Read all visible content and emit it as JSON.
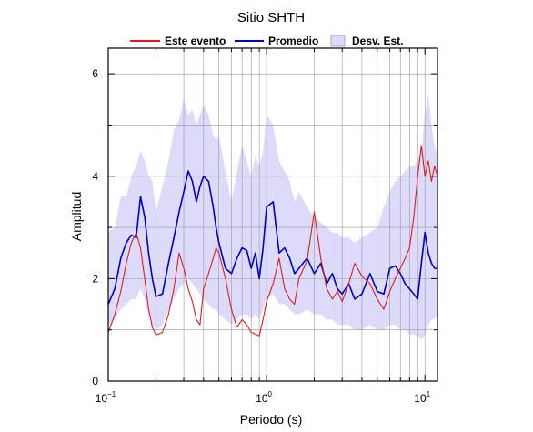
{
  "chart_data": {
    "type": "line",
    "title": "Sitio SHTH",
    "xlabel": "Periodo (s)",
    "ylabel": "Amplitud",
    "x_scale": "log",
    "xlim": [
      0.1,
      12
    ],
    "ylim": [
      0,
      6.5
    ],
    "x_ticks": [
      {
        "base": "10",
        "exp": "−1",
        "value": 0.1
      },
      {
        "base": "10",
        "exp": "0",
        "value": 1
      },
      {
        "base": "10",
        "exp": "1",
        "value": 10
      }
    ],
    "y_ticks": [
      0,
      2,
      4,
      6
    ],
    "grid": true,
    "legend_position": "top-center",
    "legend": [
      {
        "label": "Este evento",
        "color": "#e41a1c",
        "kind": "line"
      },
      {
        "label": "Promedio",
        "color": "#0000cc",
        "kind": "line"
      },
      {
        "label": "Desv. Est.",
        "color": "#dcdcfa",
        "kind": "band"
      }
    ],
    "x": [
      0.1,
      0.11,
      0.12,
      0.13,
      0.14,
      0.15,
      0.16,
      0.17,
      0.18,
      0.19,
      0.2,
      0.22,
      0.24,
      0.26,
      0.28,
      0.3,
      0.32,
      0.34,
      0.36,
      0.38,
      0.4,
      0.43,
      0.46,
      0.48,
      0.5,
      0.55,
      0.6,
      0.65,
      0.7,
      0.75,
      0.8,
      0.85,
      0.9,
      0.95,
      1.0,
      1.1,
      1.2,
      1.3,
      1.4,
      1.5,
      1.6,
      1.8,
      2.0,
      2.2,
      2.4,
      2.6,
      2.8,
      3.0,
      3.3,
      3.6,
      4.0,
      4.5,
      5.0,
      5.5,
      6.0,
      6.5,
      7.0,
      7.5,
      8.0,
      8.5,
      9.0,
      9.5,
      10.0,
      10.5,
      11.0,
      11.5,
      12.0
    ],
    "series": [
      {
        "name": "Promedio",
        "color": "#0000cc",
        "values": [
          1.5,
          1.8,
          2.4,
          2.7,
          2.85,
          2.8,
          3.6,
          3.2,
          2.5,
          2.0,
          1.65,
          1.7,
          2.3,
          2.8,
          3.3,
          3.7,
          4.1,
          3.9,
          3.5,
          3.8,
          4.0,
          3.9,
          3.4,
          3.0,
          2.7,
          2.2,
          2.1,
          2.4,
          2.6,
          2.55,
          2.2,
          2.5,
          2.0,
          2.6,
          3.4,
          3.5,
          2.5,
          2.6,
          2.4,
          2.1,
          2.2,
          2.4,
          2.1,
          2.3,
          1.9,
          2.1,
          1.8,
          1.7,
          1.9,
          1.6,
          1.7,
          2.1,
          1.75,
          1.7,
          2.2,
          2.25,
          2.1,
          1.9,
          1.8,
          1.7,
          1.6,
          2.3,
          2.9,
          2.5,
          2.3,
          2.2,
          2.2
        ]
      },
      {
        "name": "Este evento",
        "color": "#e41a1c",
        "values": [
          0.95,
          1.3,
          1.75,
          2.3,
          2.7,
          2.9,
          2.6,
          2.0,
          1.4,
          1.05,
          0.9,
          0.95,
          1.3,
          1.8,
          2.5,
          2.2,
          1.8,
          1.55,
          1.2,
          1.1,
          1.8,
          2.1,
          2.4,
          2.6,
          2.5,
          2.0,
          1.4,
          1.05,
          1.2,
          1.1,
          0.95,
          0.92,
          0.88,
          1.2,
          1.55,
          1.9,
          2.4,
          1.8,
          1.6,
          1.5,
          2.0,
          2.35,
          3.3,
          2.4,
          1.8,
          1.6,
          1.75,
          1.55,
          1.9,
          2.3,
          2.05,
          1.9,
          1.6,
          1.4,
          1.75,
          2.0,
          2.2,
          2.4,
          2.6,
          3.2,
          4.0,
          4.6,
          4.0,
          4.3,
          3.9,
          4.2,
          4.0
        ]
      },
      {
        "name": "Desv. Est. (superior)",
        "color": "#dcdcfa",
        "values": [
          2.9,
          3.0,
          3.6,
          3.6,
          4.0,
          4.2,
          4.5,
          4.3,
          4.0,
          3.9,
          3.3,
          3.8,
          4.3,
          4.9,
          5.1,
          5.5,
          5.2,
          5.3,
          5.0,
          5.2,
          5.4,
          5.2,
          4.8,
          4.7,
          4.8,
          4.1,
          3.5,
          4.1,
          4.6,
          4.3,
          4.0,
          4.4,
          4.2,
          4.5,
          5.2,
          5.0,
          4.3,
          4.1,
          3.9,
          3.5,
          3.7,
          3.4,
          3.2,
          3.1,
          3.0,
          2.9,
          2.9,
          2.8,
          2.8,
          2.7,
          2.8,
          2.9,
          3.0,
          3.4,
          3.7,
          3.9,
          4.0,
          4.1,
          4.2,
          4.2,
          4.3,
          4.5,
          5.2,
          5.6,
          5.0,
          4.6,
          4.4
        ]
      },
      {
        "name": "Desv. Est. (inferior)",
        "color": "#dcdcfa",
        "values": [
          1.1,
          1.2,
          1.4,
          1.5,
          1.6,
          1.6,
          1.8,
          1.6,
          1.3,
          1.1,
          1.0,
          1.1,
          1.4,
          1.6,
          1.8,
          1.9,
          2.0,
          1.9,
          1.8,
          1.7,
          1.6,
          1.5,
          1.4,
          1.4,
          1.3,
          1.2,
          1.1,
          1.2,
          1.3,
          1.3,
          1.2,
          1.3,
          1.2,
          1.4,
          1.6,
          1.7,
          1.5,
          1.5,
          1.4,
          1.3,
          1.3,
          1.4,
          1.3,
          1.3,
          1.2,
          1.2,
          1.1,
          1.1,
          1.1,
          1.0,
          1.0,
          1.1,
          1.0,
          1.0,
          1.1,
          1.1,
          1.0,
          1.0,
          0.9,
          0.9,
          0.9,
          0.8,
          0.9,
          1.1,
          1.2,
          1.2,
          1.3
        ]
      }
    ]
  }
}
